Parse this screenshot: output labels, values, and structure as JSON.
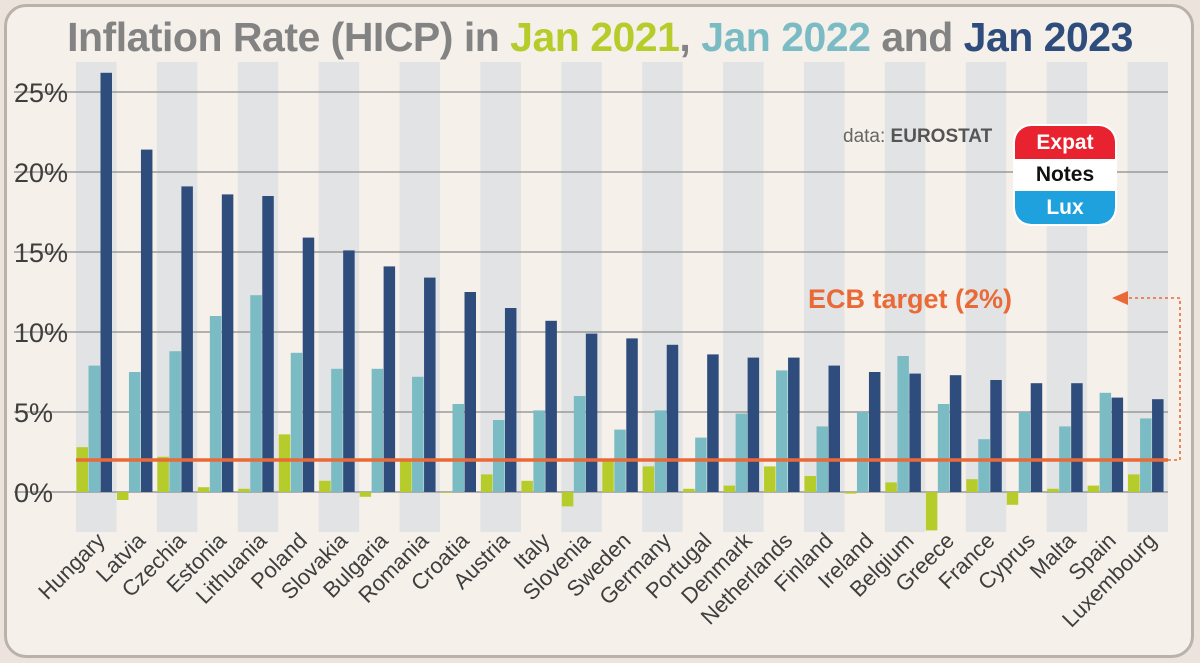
{
  "title": {
    "prefix": "Inflation Rate (HICP) in ",
    "y2021": "Jan 2021",
    "sep": ", ",
    "y2022": "Jan 2022",
    "and": " and ",
    "y2023": "Jan 2023"
  },
  "source": {
    "prefix": "data: ",
    "name": "EUROSTAT"
  },
  "logo": {
    "line1": "Expat",
    "line2": "Notes",
    "line3": "Lux"
  },
  "ecb_label": "ECB target (2%)",
  "colors": {
    "s2021": "#b6cc2a",
    "s2022": "#7bbcc4",
    "s2023": "#2f4d7c",
    "ecb": "#ea6a37"
  },
  "chart_data": {
    "type": "bar",
    "title": "Inflation Rate (HICP) in Jan 2021, Jan 2022 and Jan 2023",
    "ylim": [
      -3,
      27
    ],
    "yticks": [
      0,
      5,
      10,
      15,
      20,
      25
    ],
    "ytick_labels": [
      "0%",
      "5%",
      "10%",
      "15%",
      "20%",
      "25%"
    ],
    "grid": true,
    "categories": [
      "Hungary",
      "Latvia",
      "Czechia",
      "Estonia",
      "Lithuania",
      "Poland",
      "Slovakia",
      "Bulgaria",
      "Romania",
      "Croatia",
      "Austria",
      "Italy",
      "Slovenia",
      "Sweden",
      "Germany",
      "Portugal",
      "Denmark",
      "Netherlands",
      "Finland",
      "Ireland",
      "Belgium",
      "Greece",
      "France",
      "Cyprus",
      "Malta",
      "Spain",
      "Luxembourg"
    ],
    "series": [
      {
        "name": "Jan 2021",
        "values": [
          2.8,
          -0.5,
          2.2,
          0.3,
          0.2,
          3.6,
          0.7,
          -0.3,
          2.0,
          0.0,
          1.1,
          0.7,
          -0.9,
          1.9,
          1.6,
          0.2,
          0.4,
          1.6,
          1.0,
          -0.1,
          0.6,
          -2.4,
          0.8,
          -0.8,
          0.2,
          0.4,
          1.1
        ]
      },
      {
        "name": "Jan 2022",
        "values": [
          7.9,
          7.5,
          8.8,
          11.0,
          12.3,
          8.7,
          7.7,
          7.7,
          7.2,
          5.5,
          4.5,
          5.1,
          6.0,
          3.9,
          5.1,
          3.4,
          4.9,
          7.6,
          4.1,
          5.0,
          8.5,
          5.5,
          3.3,
          5.0,
          4.1,
          6.2,
          4.6
        ]
      },
      {
        "name": "Jan 2023",
        "values": [
          26.2,
          21.4,
          19.1,
          18.6,
          18.5,
          15.9,
          15.1,
          14.1,
          13.4,
          12.5,
          11.5,
          10.7,
          9.9,
          9.6,
          9.2,
          8.6,
          8.4,
          8.4,
          7.9,
          7.5,
          7.4,
          7.3,
          7.0,
          6.8,
          6.8,
          5.9,
          5.8
        ]
      }
    ],
    "reference_line": {
      "label": "ECB target (2%)",
      "value": 2
    },
    "legend": "title"
  }
}
